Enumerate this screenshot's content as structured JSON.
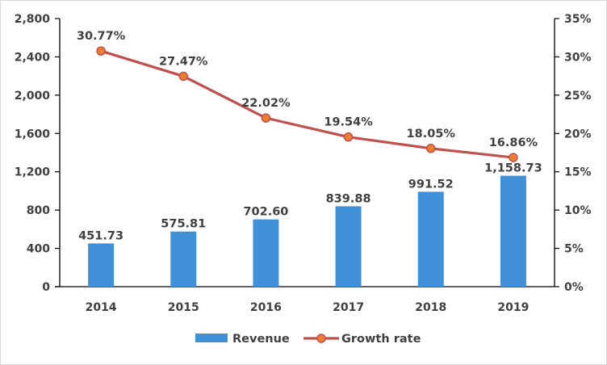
{
  "chart_data": {
    "type": "bar+line",
    "title": "",
    "categories": [
      "2014",
      "2015",
      "2016",
      "2017",
      "2018",
      "2019"
    ],
    "series": [
      {
        "name": "Revenue",
        "type": "bar",
        "axis": "left",
        "color": "#4191d9",
        "values": [
          451.73,
          575.81,
          702.6,
          839.88,
          991.52,
          1158.73
        ],
        "labels": [
          "451.73",
          "575.81",
          "702.60",
          "839.88",
          "991.52",
          "1,158.73"
        ]
      },
      {
        "name": "Growth rate",
        "type": "line",
        "axis": "right",
        "color": "#c0504d",
        "marker_color": "#ed7d31",
        "values": [
          30.77,
          27.47,
          22.02,
          19.54,
          18.05,
          16.86
        ],
        "labels": [
          "30.77%",
          "27.47%",
          "22.02%",
          "19.54%",
          "18.05%",
          "16.86%"
        ]
      }
    ],
    "y_left": {
      "range": [
        0,
        2800
      ],
      "ticks": [
        0,
        400,
        800,
        1200,
        1600,
        2000,
        2400,
        2800
      ],
      "tick_labels": [
        "0",
        "400",
        "800",
        "1,200",
        "1,600",
        "2,000",
        "2,400",
        "2,800"
      ]
    },
    "y_right": {
      "range": [
        0,
        35
      ],
      "ticks": [
        0,
        5,
        10,
        15,
        20,
        25,
        30,
        35
      ],
      "tick_labels": [
        "0%",
        "5%",
        "10%",
        "15%",
        "20%",
        "25%",
        "30%",
        "35%"
      ]
    },
    "grid": false,
    "legend": {
      "position": "bottom",
      "entries": [
        "Revenue",
        "Growth rate"
      ]
    }
  }
}
